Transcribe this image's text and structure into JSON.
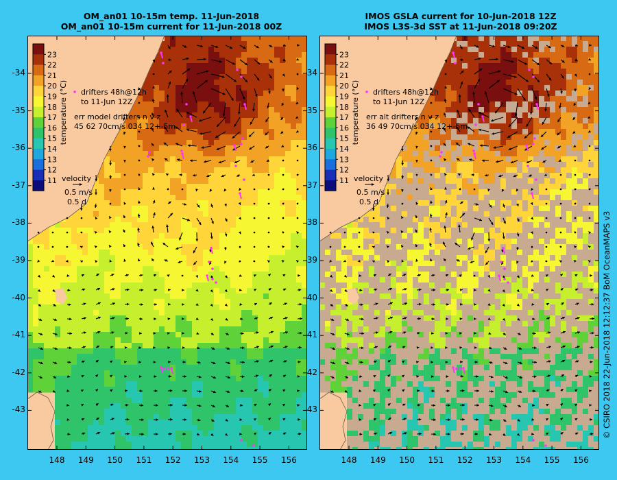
{
  "left_panel": {
    "title_line1": "OM_an01 10-15m temp. 11-Jun-2018",
    "title_line2": "OM_an01 10-15m current for 11-Jun-2018 00Z",
    "legend_line1": "drifters 48h@12h",
    "legend_line2": "to 11-Jun 12Z",
    "legend_line3": "err model drifters n v z",
    "legend_line4": "45 62 70cm/s 034 12+-5m"
  },
  "right_panel": {
    "title_line1": "IMOS GSLA current for 10-Jun-2018 12Z",
    "title_line2": "IMOS L3S-3d SST at 11-Jun-2018 09:20Z",
    "legend_line1": "drifters 48h@12h",
    "legend_line2": "to 11-Jun 12Z",
    "legend_line3": "err alt drifters n v z",
    "legend_line4": "36 49 70cm/s 034 12+-5m"
  },
  "velocity_key": {
    "label": "velocity",
    "speed": "0.5 m/s",
    "duration": "0.5 d"
  },
  "colorbar": {
    "label": "temperature (°C)",
    "ticks": [
      "23",
      "22",
      "21",
      "20",
      "19",
      "18",
      "17",
      "16",
      "15",
      "14",
      "13",
      "12",
      "11"
    ],
    "colors": [
      "#7a0f0f",
      "#a8310a",
      "#d86a14",
      "#f2a224",
      "#ffd53a",
      "#f6f632",
      "#c6ef2e",
      "#5fd23a",
      "#2fc46a",
      "#27c6b0",
      "#1fa8e0",
      "#1a6fdc",
      "#1a2fb8",
      "#0b0d7a"
    ]
  },
  "axes": {
    "lat_labels": [
      "-34",
      "-35",
      "-36",
      "-37",
      "-38",
      "-39",
      "-40",
      "-41",
      "-42",
      "-43"
    ],
    "lon_labels": [
      "148",
      "149",
      "150",
      "151",
      "152",
      "153",
      "154",
      "155",
      "156"
    ]
  },
  "credit": "© CSIRO 2018 22-Jun-2018 12:12:37 BoM OceanMAPS v3",
  "colors": {
    "background": "#3cc8f0",
    "land": "#f9c9a0",
    "no_data": "#c8aa90",
    "drifter": "#ff33ff",
    "eddy_warm": "#d8741a"
  }
}
